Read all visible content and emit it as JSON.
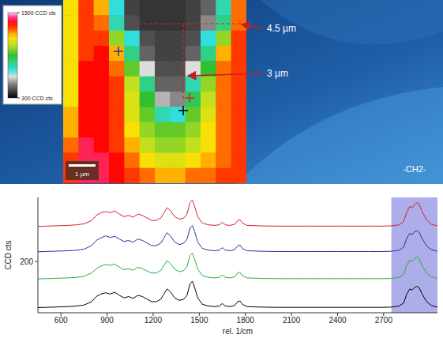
{
  "chart_data": [
    {
      "type": "heatmap",
      "cells": [
        [
          1150,
          1300,
          1200,
          700,
          400,
          380,
          380,
          380,
          400,
          450,
          750,
          1250
        ],
        [
          1150,
          1300,
          1250,
          750,
          420,
          380,
          380,
          380,
          400,
          500,
          800,
          1250
        ],
        [
          1150,
          1300,
          1300,
          1000,
          700,
          420,
          400,
          400,
          420,
          700,
          1000,
          1300
        ],
        [
          1150,
          1300,
          1350,
          1200,
          800,
          450,
          400,
          400,
          450,
          800,
          1200,
          1300
        ],
        [
          1150,
          1350,
          1350,
          1250,
          950,
          600,
          420,
          420,
          600,
          900,
          1250,
          1300
        ],
        [
          1150,
          1350,
          1350,
          1300,
          1050,
          800,
          450,
          450,
          750,
          1000,
          1250,
          1300
        ],
        [
          1150,
          1350,
          1350,
          1300,
          1100,
          900,
          550,
          500,
          850,
          1050,
          1250,
          1300
        ],
        [
          1200,
          1350,
          1350,
          1300,
          1100,
          950,
          750,
          700,
          950,
          1100,
          1250,
          1300
        ],
        [
          1200,
          1350,
          1350,
          1300,
          1150,
          1000,
          950,
          950,
          1000,
          1150,
          1250,
          1300
        ],
        [
          1250,
          1400,
          1350,
          1300,
          1200,
          1050,
          1000,
          1000,
          1050,
          1150,
          1250,
          1300
        ],
        [
          1300,
          1400,
          1400,
          1350,
          1250,
          1150,
          1100,
          1100,
          1150,
          1200,
          1250,
          1300
        ],
        [
          1300,
          1400,
          1400,
          1350,
          1300,
          1250,
          1200,
          1200,
          1250,
          1250,
          1300,
          1300
        ]
      ],
      "colorbar_range": [
        300,
        1500
      ],
      "colorbar_ticks": [
        {
          "value": 1500,
          "label": "1500 CCD cts"
        },
        {
          "value": 300,
          "label": "300 CCD cts"
        }
      ],
      "scale_bar_label": "1 µm",
      "annotations": [
        "4.5 µm",
        "3 µm"
      ]
    },
    {
      "type": "line",
      "x_label": "rel. 1/cm",
      "y_label": "CCD cts",
      "annotation": "-CH2-",
      "shaded_range": [
        2750,
        3050
      ],
      "xlim": [
        450,
        3050
      ],
      "ylim": [
        0,
        450
      ],
      "xticks": [
        600,
        900,
        1200,
        1500,
        1800,
        2100,
        2400,
        2700
      ],
      "yticks": [
        200
      ],
      "x": [
        450,
        500,
        550,
        600,
        650,
        700,
        750,
        800,
        830,
        860,
        890,
        920,
        950,
        980,
        1010,
        1040,
        1070,
        1100,
        1130,
        1160,
        1190,
        1220,
        1250,
        1270,
        1290,
        1310,
        1340,
        1370,
        1400,
        1420,
        1440,
        1455,
        1470,
        1490,
        1520,
        1560,
        1600,
        1630,
        1650,
        1670,
        1700,
        1730,
        1750,
        1765,
        1780,
        1810,
        1900,
        2000,
        2100,
        2200,
        2300,
        2400,
        2500,
        2600,
        2700,
        2750,
        2800,
        2830,
        2850,
        2870,
        2885,
        2900,
        2915,
        2930,
        2950,
        2980,
        3010,
        3050
      ],
      "series": [
        {
          "color": "#d0202a",
          "values": [
            337,
            338,
            339,
            340,
            341,
            343,
            347,
            360,
            380,
            390,
            395,
            390,
            397,
            385,
            375,
            380,
            373,
            385,
            380,
            370,
            360,
            360,
            370,
            390,
            410,
            400,
            375,
            365,
            370,
            385,
            430,
            440,
            415,
            375,
            350,
            343,
            341,
            343,
            353,
            343,
            341,
            345,
            360,
            363,
            350,
            341,
            339,
            338,
            338,
            338,
            338,
            338,
            338,
            338,
            338,
            339,
            343,
            355,
            392,
            415,
            410,
            420,
            430,
            425,
            395,
            362,
            345,
            339
          ]
        },
        {
          "color": "#2830a0",
          "values": [
            238,
            239,
            240,
            241,
            242,
            244,
            248,
            262,
            282,
            292,
            300,
            294,
            298,
            288,
            278,
            282,
            275,
            288,
            282,
            272,
            262,
            262,
            272,
            292,
            312,
            302,
            276,
            266,
            272,
            287,
            330,
            340,
            316,
            276,
            251,
            244,
            242,
            244,
            254,
            244,
            242,
            246,
            261,
            264,
            251,
            242,
            240,
            239,
            239,
            239,
            239,
            239,
            239,
            239,
            239,
            240,
            244,
            256,
            290,
            310,
            305,
            316,
            320,
            314,
            290,
            260,
            246,
            240
          ]
        },
        {
          "color": "#20b040",
          "values": [
            132,
            133,
            134,
            135,
            136,
            138,
            142,
            155,
            172,
            182,
            188,
            185,
            190,
            178,
            168,
            172,
            166,
            178,
            172,
            163,
            155,
            155,
            165,
            185,
            203,
            193,
            170,
            160,
            165,
            180,
            223,
            233,
            208,
            170,
            145,
            138,
            136,
            138,
            147,
            138,
            136,
            140,
            155,
            158,
            145,
            136,
            134,
            133,
            133,
            133,
            133,
            133,
            133,
            133,
            133,
            134,
            138,
            150,
            185,
            205,
            200,
            210,
            218,
            212,
            185,
            155,
            140,
            134
          ]
        },
        {
          "color": "#000000",
          "values": [
            20,
            21,
            22,
            23,
            24,
            26,
            30,
            43,
            63,
            73,
            78,
            73,
            80,
            68,
            58,
            63,
            56,
            68,
            63,
            53,
            43,
            43,
            53,
            73,
            93,
            83,
            58,
            48,
            53,
            68,
            113,
            123,
            98,
            58,
            33,
            26,
            24,
            26,
            36,
            26,
            24,
            28,
            43,
            46,
            33,
            24,
            22,
            21,
            21,
            21,
            21,
            21,
            21,
            21,
            21,
            22,
            26,
            38,
            73,
            93,
            88,
            98,
            103,
            98,
            73,
            43,
            28,
            22
          ]
        }
      ]
    }
  ]
}
